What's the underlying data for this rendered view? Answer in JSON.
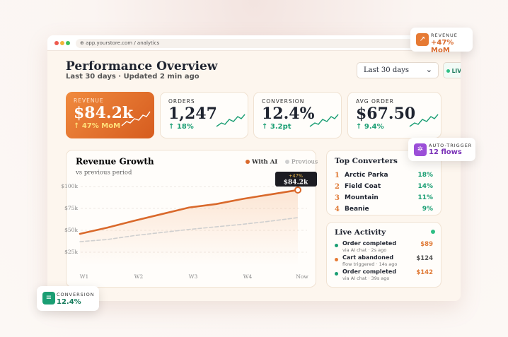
{
  "browser": {
    "url": "app.yourstore.com / analytics"
  },
  "header": {
    "title": "Performance Overview",
    "subtitle": "Last 30 days · Updated 2 min ago",
    "range": "Last 30 days",
    "live": "LIVE"
  },
  "kpis": [
    {
      "label": "REVENUE",
      "value": "$84.2k",
      "change": "↑ 47% MoM"
    },
    {
      "label": "ORDERS",
      "value": "1,247",
      "change": "↑ 18%"
    },
    {
      "label": "CONVERSION",
      "value": "12.4%",
      "change": "↑ 3.2pt"
    },
    {
      "label": "AVG ORDER",
      "value": "$67.50",
      "change": "↑ 9.4%"
    }
  ],
  "chart_data": {
    "type": "line",
    "title": "Revenue Growth",
    "subtitle": "vs previous period",
    "categories": [
      "W1",
      null,
      "W2",
      null,
      "W3",
      null,
      "W4",
      null,
      "Now"
    ],
    "series": [
      {
        "name": "With AI",
        "color": "#d9692b",
        "values": [
          46,
          53,
          61,
          68.5,
          76,
          80,
          86,
          91,
          96
        ]
      },
      {
        "name": "Previous",
        "color": "#cfcfcf",
        "values": [
          37,
          39.5,
          44,
          47.5,
          51,
          54,
          57,
          60.5,
          64.5
        ]
      }
    ],
    "ylim": [
      10,
      105
    ],
    "yticks": [
      {
        "value": 25,
        "label": "$25k"
      },
      {
        "value": 50,
        "label": "$50k"
      },
      {
        "value": 75,
        "label": "$75k"
      },
      {
        "value": 100,
        "label": "$100k"
      }
    ],
    "grid": true,
    "annotation": {
      "change": "+47%",
      "value": "$84.2k"
    }
  },
  "top_converters": {
    "title": "Top Converters",
    "items": [
      {
        "rank": "1",
        "name": "Arctic Parka",
        "rate": "18%"
      },
      {
        "rank": "2",
        "name": "Field Coat",
        "rate": "14%"
      },
      {
        "rank": "3",
        "name": "Mountain",
        "rate": "11%"
      },
      {
        "rank": "4",
        "name": "Beanie",
        "rate": "9%"
      }
    ]
  },
  "live_activity": {
    "title": "Live Activity",
    "items": [
      {
        "event": "Order completed",
        "detail": "via AI chat · 2s ago",
        "amount": "$89"
      },
      {
        "event": "Cart abandoned",
        "detail": "flow triggered · 14s ago",
        "amount": "$124"
      },
      {
        "event": "Order completed",
        "detail": "via AI chat · 39s ago",
        "amount": "$142"
      }
    ]
  },
  "floating": [
    {
      "label": "REVENUE",
      "value": "+47% MoM"
    },
    {
      "label": "AUTO-TRIGGER",
      "value": "12 flows"
    },
    {
      "label": "CONVERSION",
      "value": "12.4%"
    }
  ]
}
